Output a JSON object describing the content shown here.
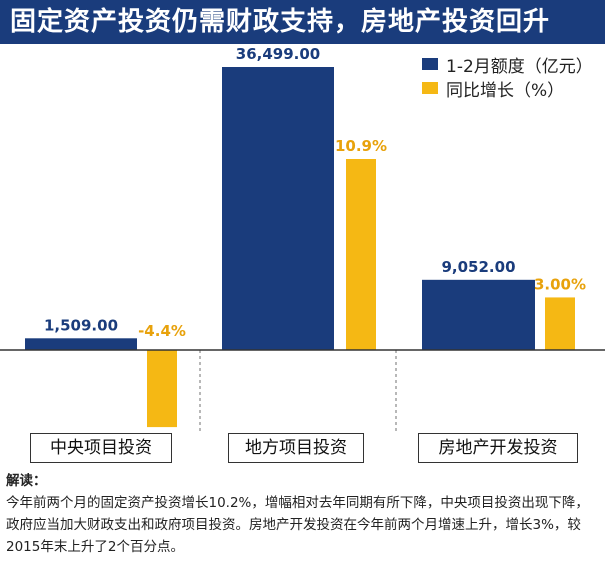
{
  "title": "固定资产投资仍需财政支持，房地产投资回升",
  "colors": {
    "primary": "#1a3c7c",
    "secondary": "#f5b814",
    "value_label": "#1a3c7c",
    "growth_label": "#e8a20c"
  },
  "chart_data": {
    "type": "bar",
    "categories": [
      "中央项目投资",
      "地方项目投资",
      "房地产开发投资"
    ],
    "series": [
      {
        "name": "1-2月额度（亿元）",
        "values": [
          1509.0,
          36499.0,
          9052.0
        ],
        "labels": [
          "1,509.00",
          "36,499.00",
          "9,052.00"
        ],
        "color": "#1a3c7c"
      },
      {
        "name": "同比增长（%）",
        "values": [
          -4.4,
          10.9,
          3.0
        ],
        "labels": [
          "-4.4%",
          "10.9%",
          "3.00%"
        ],
        "color": "#f5b814"
      }
    ],
    "legend_position": "top-right",
    "grid": false
  },
  "note": {
    "heading": "解读：",
    "text": "今年前两个月的固定资产投资增长10.2%，增幅相对去年同期有所下降，中央项目投资出现下降，政府应当加大财政支出和政府项目投资。房地产开发投资在今年前两个月增速上升，增长3%，较2015年末上升了2个百分点。"
  }
}
